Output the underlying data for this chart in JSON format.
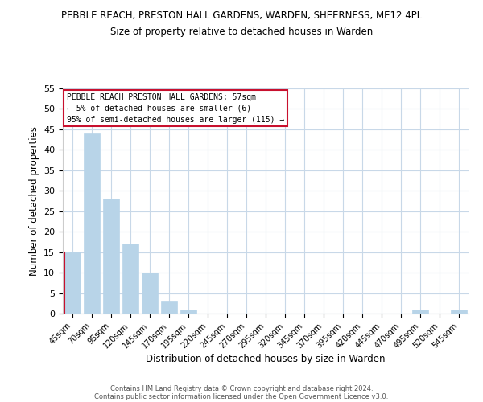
{
  "title": "PEBBLE REACH, PRESTON HALL GARDENS, WARDEN, SHEERNESS, ME12 4PL",
  "subtitle": "Size of property relative to detached houses in Warden",
  "xlabel": "Distribution of detached houses by size in Warden",
  "ylabel": "Number of detached properties",
  "bar_color": "#b8d4e8",
  "highlight_color": "#c8102e",
  "bin_labels": [
    "45sqm",
    "70sqm",
    "95sqm",
    "120sqm",
    "145sqm",
    "170sqm",
    "195sqm",
    "220sqm",
    "245sqm",
    "270sqm",
    "295sqm",
    "320sqm",
    "345sqm",
    "370sqm",
    "395sqm",
    "420sqm",
    "445sqm",
    "470sqm",
    "495sqm",
    "520sqm",
    "545sqm"
  ],
  "bar_heights": [
    15,
    44,
    28,
    17,
    10,
    3,
    1,
    0,
    0,
    0,
    0,
    0,
    0,
    0,
    0,
    0,
    0,
    0,
    1,
    0,
    1
  ],
  "highlight_bar_index": 0,
  "ylim": [
    0,
    55
  ],
  "yticks": [
    0,
    5,
    10,
    15,
    20,
    25,
    30,
    35,
    40,
    45,
    50,
    55
  ],
  "annotation_title": "PEBBLE REACH PRESTON HALL GARDENS: 57sqm",
  "annotation_line1": "← 5% of detached houses are smaller (6)",
  "annotation_line2": "95% of semi-detached houses are larger (115) →",
  "footer1": "Contains HM Land Registry data © Crown copyright and database right 2024.",
  "footer2": "Contains public sector information licensed under the Open Government Licence v3.0.",
  "bg_color": "#ffffff",
  "grid_color": "#c8d8e8",
  "annotation_box_edge_color": "#c8102e"
}
